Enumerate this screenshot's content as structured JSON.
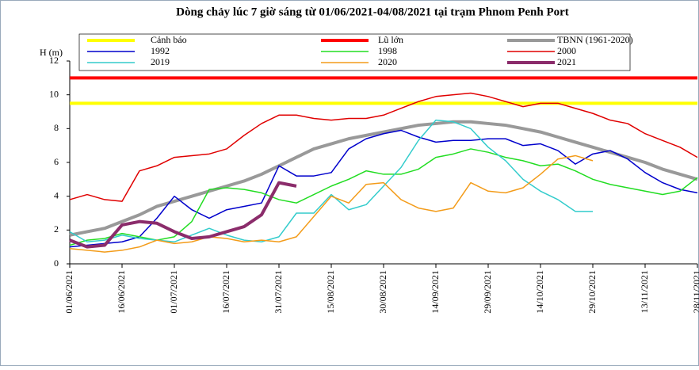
{
  "chart_data": {
    "type": "line",
    "title": "Dòng chảy lúc 7 giờ sáng từ 01/06/2021-04/08/2021 tại trạm Phnom Penh Port",
    "y_label": "H (m)",
    "x": [
      0,
      5,
      10,
      15,
      20,
      25,
      30,
      35,
      40,
      45,
      50,
      55,
      60,
      65,
      70,
      75,
      80,
      85,
      90,
      95,
      100,
      105,
      110,
      115,
      120,
      125,
      130,
      135,
      140,
      145,
      150,
      155,
      160,
      165,
      170,
      175,
      180
    ],
    "xlim": [
      0,
      180
    ],
    "xticks": [
      {
        "value": 0,
        "label": "01/06/2021"
      },
      {
        "value": 15,
        "label": "16/06/2021"
      },
      {
        "value": 30,
        "label": "01/07/2021"
      },
      {
        "value": 45,
        "label": "16/07/2021"
      },
      {
        "value": 60,
        "label": "31/07/2021"
      },
      {
        "value": 75,
        "label": "15/08/2021"
      },
      {
        "value": 90,
        "label": "30/08/2021"
      },
      {
        "value": 105,
        "label": "14/09/2021"
      },
      {
        "value": 120,
        "label": "29/09/2021"
      },
      {
        "value": 135,
        "label": "14/10/2021"
      },
      {
        "value": 150,
        "label": "29/10/2021"
      },
      {
        "value": 165,
        "label": "13/11/2021"
      },
      {
        "value": 180,
        "label": "28/11/2021"
      }
    ],
    "ylim": [
      0,
      12
    ],
    "yticks": [
      0,
      2,
      4,
      6,
      8,
      10,
      12
    ],
    "legend": "top",
    "series": [
      {
        "name": "Cảnh báo",
        "color": "#ffff00",
        "width": 4,
        "values": [
          9.5,
          9.5,
          9.5,
          9.5,
          9.5,
          9.5,
          9.5,
          9.5,
          9.5,
          9.5,
          9.5,
          9.5,
          9.5,
          9.5,
          9.5,
          9.5,
          9.5,
          9.5,
          9.5,
          9.5,
          9.5,
          9.5,
          9.5,
          9.5,
          9.5,
          9.5,
          9.5,
          9.5,
          9.5,
          9.5,
          9.5,
          9.5,
          9.5,
          9.5,
          9.5,
          9.5,
          9.5
        ]
      },
      {
        "name": "Lũ lớn",
        "color": "#ff0000",
        "width": 4,
        "values": [
          11,
          11,
          11,
          11,
          11,
          11,
          11,
          11,
          11,
          11,
          11,
          11,
          11,
          11,
          11,
          11,
          11,
          11,
          11,
          11,
          11,
          11,
          11,
          11,
          11,
          11,
          11,
          11,
          11,
          11,
          11,
          11,
          11,
          11,
          11,
          11,
          11
        ]
      },
      {
        "name": "TBNN (1961-2020)",
        "color": "#999999",
        "width": 4,
        "values": [
          1.7,
          1.9,
          2.1,
          2.5,
          2.9,
          3.4,
          3.7,
          4.0,
          4.3,
          4.6,
          4.9,
          5.3,
          5.8,
          6.3,
          6.8,
          7.1,
          7.4,
          7.6,
          7.8,
          8.0,
          8.2,
          8.3,
          8.4,
          8.4,
          8.3,
          8.2,
          8.0,
          7.8,
          7.5,
          7.2,
          6.9,
          6.6,
          6.3,
          6.0,
          5.6,
          5.3,
          5.0
        ]
      },
      {
        "name": "1992",
        "color": "#0000cc",
        "width": 1.5,
        "values": [
          1.0,
          1.1,
          1.2,
          1.3,
          1.6,
          2.7,
          4.0,
          3.2,
          2.7,
          3.2,
          3.4,
          3.6,
          5.8,
          5.2,
          5.2,
          5.4,
          6.8,
          7.4,
          7.7,
          7.9,
          7.5,
          7.2,
          7.3,
          7.3,
          7.4,
          7.4,
          7.0,
          7.1,
          6.7,
          5.9,
          6.5,
          6.7,
          6.2,
          5.4,
          4.8,
          4.4,
          4.2
        ]
      },
      {
        "name": "1998",
        "color": "#22dd22",
        "width": 1.5,
        "values": [
          1.1,
          1.4,
          1.5,
          1.8,
          1.6,
          1.4,
          1.6,
          2.5,
          4.4,
          4.5,
          4.4,
          4.2,
          3.8,
          3.6,
          4.1,
          4.6,
          5.0,
          5.5,
          5.3,
          5.3,
          5.6,
          6.3,
          6.5,
          6.8,
          6.6,
          6.3,
          6.1,
          5.8,
          5.9,
          5.5,
          5.0,
          4.7,
          4.5,
          4.3,
          4.1,
          4.3,
          5.1
        ]
      },
      {
        "name": "2000",
        "color": "#e00000",
        "width": 1.5,
        "values": [
          3.8,
          4.1,
          3.8,
          3.7,
          5.5,
          5.8,
          6.3,
          6.4,
          6.5,
          6.8,
          7.6,
          8.3,
          8.8,
          8.8,
          8.6,
          8.5,
          8.6,
          8.6,
          8.8,
          9.2,
          9.6,
          9.9,
          10.0,
          10.1,
          9.9,
          9.6,
          9.3,
          9.5,
          9.5,
          9.2,
          8.9,
          8.5,
          8.3,
          7.7,
          7.3,
          6.9,
          6.3
        ]
      },
      {
        "name": "2019",
        "color": "#33cccc",
        "width": 1.5,
        "values": [
          1.9,
          1.3,
          1.4,
          1.7,
          1.5,
          1.4,
          1.3,
          1.7,
          2.1,
          1.7,
          1.4,
          1.3,
          1.6,
          3.0,
          3.0,
          4.1,
          3.2,
          3.5,
          4.6,
          5.7,
          7.3,
          8.5,
          8.4,
          8.0,
          6.9,
          6.1,
          5.0,
          4.3,
          3.8,
          3.1,
          3.1,
          null,
          null,
          null,
          null,
          null,
          null
        ]
      },
      {
        "name": "2020",
        "color": "#f39c1a",
        "width": 1.5,
        "values": [
          0.9,
          0.8,
          0.7,
          0.8,
          1.0,
          1.4,
          1.2,
          1.3,
          1.6,
          1.5,
          1.3,
          1.4,
          1.3,
          1.6,
          2.8,
          4.0,
          3.6,
          4.7,
          4.8,
          3.8,
          3.3,
          3.1,
          3.3,
          4.8,
          4.3,
          4.2,
          4.5,
          5.3,
          6.2,
          6.4,
          6.1,
          null,
          null,
          null,
          null,
          null,
          null
        ]
      },
      {
        "name": "2021",
        "color": "#8b2c6b",
        "width": 4,
        "values": [
          1.4,
          1.0,
          1.1,
          2.3,
          2.5,
          2.4,
          1.9,
          1.5,
          1.6,
          1.9,
          2.2,
          2.9,
          4.8,
          4.6,
          null,
          null,
          null,
          null,
          null,
          null,
          null,
          null,
          null,
          null,
          null,
          null,
          null,
          null,
          null,
          null,
          null,
          null,
          null,
          null,
          null,
          null,
          null
        ]
      }
    ]
  }
}
